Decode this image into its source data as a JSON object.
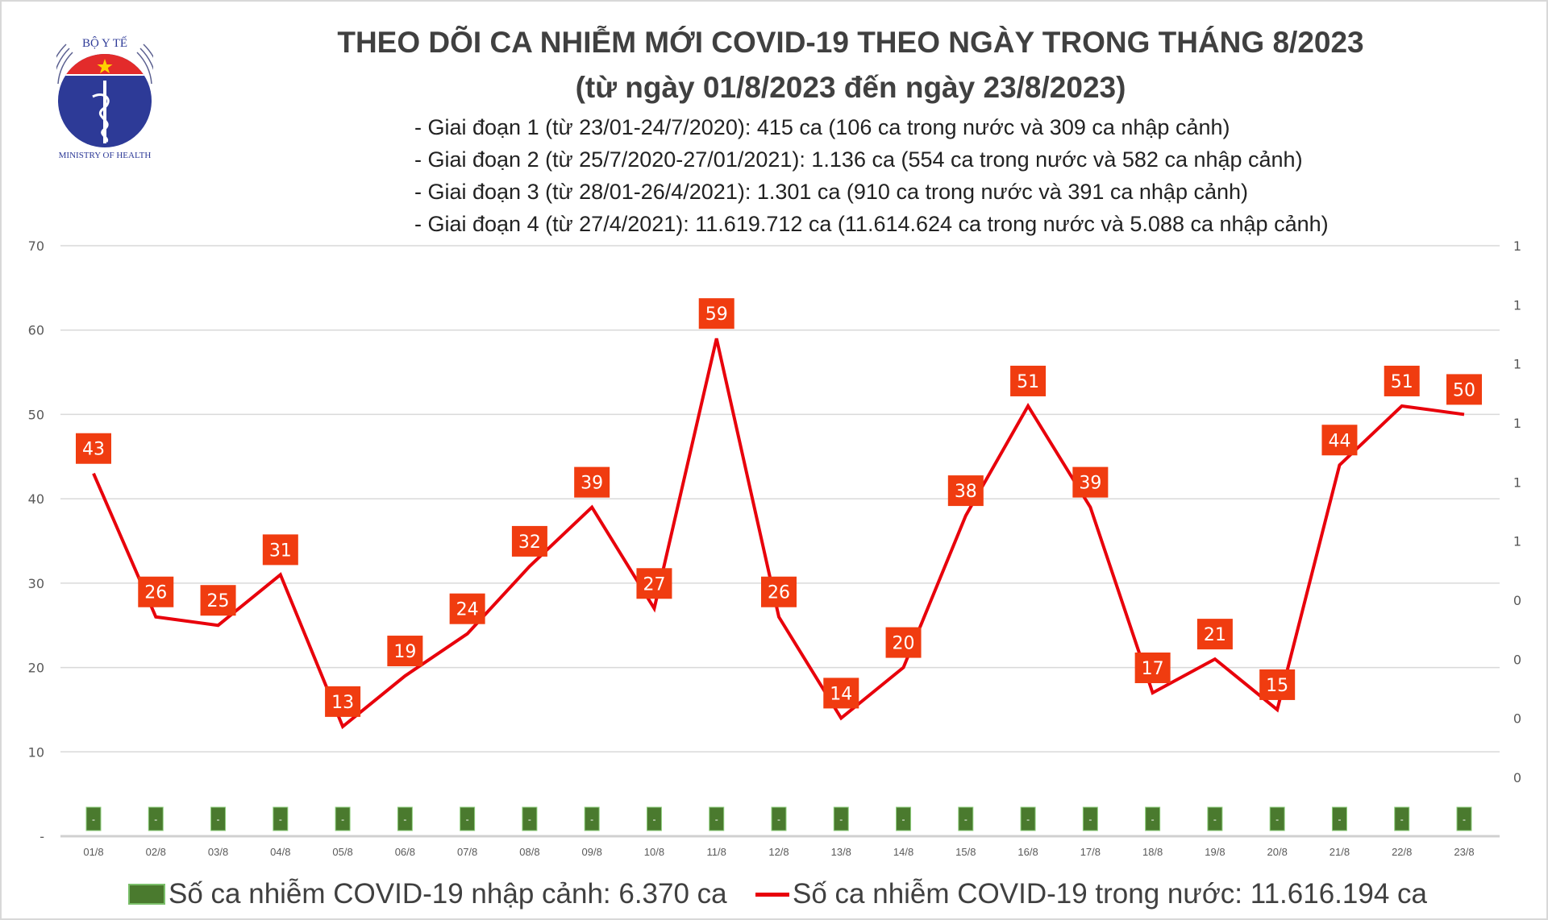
{
  "logo": {
    "top_text": "BỘ Y TẾ",
    "bottom_text": "MINISTRY OF HEALTH"
  },
  "title": {
    "line1": "THEO DÕI CA NHIỄM MỚI COVID-19 THEO NGÀY TRONG THÁNG 8/2023",
    "line2": "(từ ngày 01/8/2023 đến ngày 23/8/2023)"
  },
  "notes": [
    "- Giai đoạn 1 (từ 23/01-24/7/2020): 415 ca (106 ca trong nước và 309 ca nhập cảnh)",
    "- Giai đoạn 2 (từ 25/7/2020-27/01/2021): 1.136 ca (554 ca trong nước và 582 ca nhập cảnh)",
    "- Giai đoạn 3 (từ 28/01-26/4/2021): 1.301 ca (910 ca trong nước và 391 ca nhập cảnh)",
    "- Giai đoạn 4 (từ 27/4/2021): 11.619.712 ca (11.614.624 ca trong nước và 5.088 ca nhập cảnh)"
  ],
  "legend": {
    "bar_label": "Số ca nhiễm COVID-19 nhập cảnh: 6.370 ca",
    "line_label": "Số ca nhiễm COVID-19 trong nước: 11.616.194 ca"
  },
  "colors": {
    "line": "#e8000b",
    "data_label_bg": "#f03c10",
    "bar": "#4a7a2e",
    "grid": "#d9d9d9",
    "axis_text": "#595959"
  },
  "chart_data": {
    "type": "bar+line",
    "categories": [
      "01/8",
      "02/8",
      "03/8",
      "04/8",
      "05/8",
      "06/8",
      "07/8",
      "08/8",
      "09/8",
      "10/8",
      "11/8",
      "12/8",
      "13/8",
      "14/8",
      "15/8",
      "16/8",
      "17/8",
      "18/8",
      "19/8",
      "20/8",
      "21/8",
      "22/8",
      "23/8"
    ],
    "series": [
      {
        "name": "Số ca nhiễm COVID-19 trong nước",
        "type": "line",
        "axis": "left",
        "values": [
          43,
          26,
          25,
          31,
          13,
          19,
          24,
          32,
          39,
          27,
          59,
          26,
          14,
          20,
          38,
          51,
          39,
          17,
          21,
          15,
          44,
          51,
          50
        ]
      },
      {
        "name": "Số ca nhiễm COVID-19 nhập cảnh",
        "type": "bar",
        "axis": "right",
        "values": [
          0,
          0,
          0,
          0,
          0,
          0,
          0,
          0,
          0,
          0,
          0,
          0,
          0,
          0,
          0,
          0,
          0,
          0,
          0,
          0,
          0,
          0,
          0
        ],
        "data_labels": [
          "-",
          "-",
          "-",
          "-",
          "-",
          "-",
          "-",
          "-",
          "-",
          "-",
          "-",
          "-",
          "-",
          "-",
          "-",
          "-",
          "-",
          "-",
          "-",
          "-",
          "-",
          "-",
          "-"
        ]
      }
    ],
    "left_axis": {
      "ylim": [
        0,
        70
      ],
      "tick_labels": [
        "-",
        "10",
        "20",
        "30",
        "40",
        "50",
        "60",
        "70"
      ]
    },
    "right_axis": {
      "tick_labels": [
        "0",
        "0",
        "0",
        "0",
        "1",
        "1",
        "1",
        "1",
        "1",
        "1"
      ]
    },
    "grid": true,
    "legend_position": "bottom"
  }
}
